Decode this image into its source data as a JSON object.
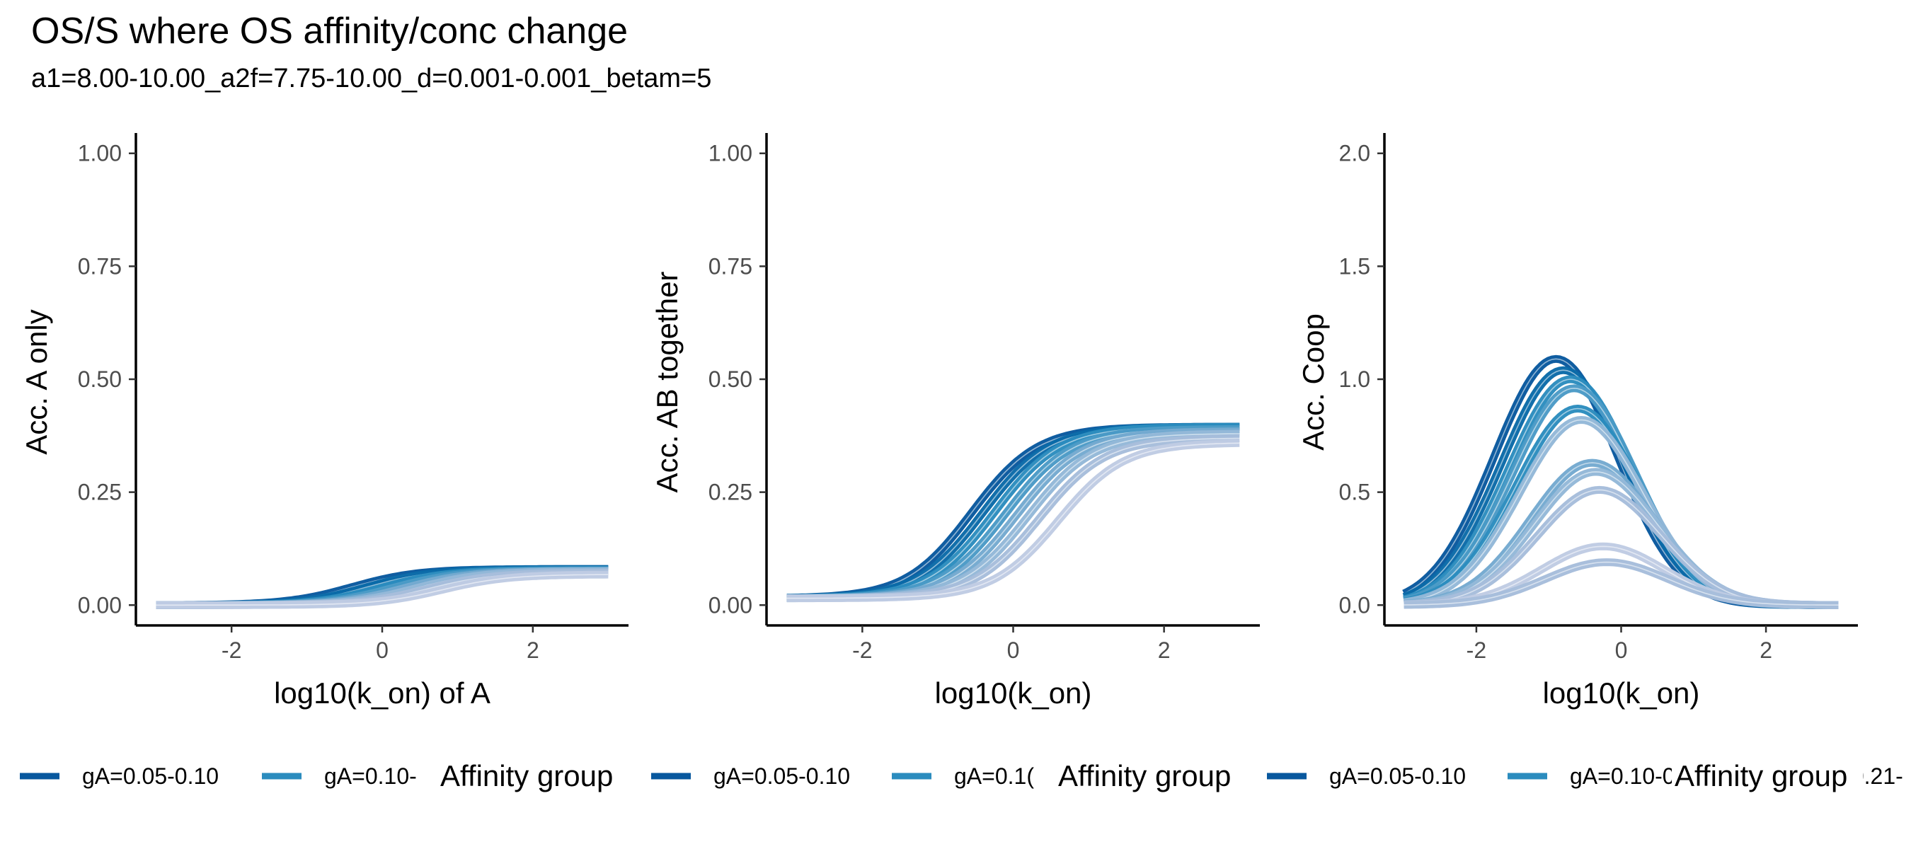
{
  "title": "OS/S where OS affinity/conc change",
  "subtitle": "a1=8.00-10.00_a2f=7.75-10.00_d=0.001-0.001_betam=5",
  "legend_title": "Affinity group",
  "colors": {
    "axis": "#000000",
    "tick_label": "#4d4d4d",
    "palette": [
      "#08589e",
      "#0a6aa8",
      "#2b8cbe",
      "#4a9ac6",
      "#74a9cf",
      "#93b8d8",
      "#a6bddb",
      "#bfcbe3"
    ]
  },
  "chart_data": [
    {
      "type": "line",
      "xlabel": "log10(k_on) of A",
      "ylabel": "Acc. A only",
      "xlim": [
        -3,
        3
      ],
      "ylim": [
        0,
        1
      ],
      "xticks": [
        -2,
        0,
        2
      ],
      "yticks": [
        0,
        0.25,
        0.5,
        0.75,
        1
      ],
      "ytick_labels": [
        "0.00",
        "0.25",
        "0.50",
        "0.75",
        "1.00"
      ],
      "grid": false,
      "legend_placement": "bottom",
      "legend_entries": [
        "gA=0.05-0.10",
        "gA=0.10-"
      ],
      "curves": [
        {
          "group": 0,
          "amp": 0.08,
          "mid": -0.4,
          "base": 0.0,
          "k": 2.3
        },
        {
          "group": 0,
          "amp": 0.08,
          "mid": -0.2,
          "base": 0.0,
          "k": 2.3
        },
        {
          "group": 1,
          "amp": 0.078,
          "mid": 0.0,
          "base": 0.0,
          "k": 2.3
        },
        {
          "group": 1,
          "amp": 0.077,
          "mid": 0.15,
          "base": 0.0,
          "k": 2.3
        },
        {
          "group": 2,
          "amp": 0.076,
          "mid": 0.3,
          "base": 0.0,
          "k": 2.3
        },
        {
          "group": 2,
          "amp": 0.075,
          "mid": 0.45,
          "base": 0.0,
          "k": 2.3
        },
        {
          "group": 3,
          "amp": 0.072,
          "mid": 0.6,
          "base": 0.0,
          "k": 2.3
        },
        {
          "group": 3,
          "amp": 0.068,
          "mid": 0.8,
          "base": 0.0,
          "k": 2.3
        }
      ]
    },
    {
      "type": "line",
      "xlabel": "log10(k_on)",
      "ylabel": "Acc. AB together",
      "xlim": [
        -3,
        3
      ],
      "ylim": [
        0,
        1
      ],
      "xticks": [
        -2,
        0,
        2
      ],
      "yticks": [
        0,
        0.25,
        0.5,
        0.75,
        1
      ],
      "ytick_labels": [
        "0.00",
        "0.25",
        "0.50",
        "0.75",
        "1.00"
      ],
      "grid": false,
      "legend_placement": "bottom",
      "legend_entries": [
        "gA=0.05-0.10",
        "gA=0.1("
      ],
      "curves": [
        {
          "group": 0,
          "amp": 0.38,
          "mid": -0.55,
          "base": 0.015,
          "k": 2.3
        },
        {
          "group": 0,
          "amp": 0.38,
          "mid": -0.4,
          "base": 0.015,
          "k": 2.3
        },
        {
          "group": 1,
          "amp": 0.38,
          "mid": -0.25,
          "base": 0.015,
          "k": 2.3
        },
        {
          "group": 1,
          "amp": 0.375,
          "mid": -0.1,
          "base": 0.015,
          "k": 2.3
        },
        {
          "group": 2,
          "amp": 0.37,
          "mid": 0.05,
          "base": 0.015,
          "k": 2.3
        },
        {
          "group": 2,
          "amp": 0.365,
          "mid": 0.2,
          "base": 0.015,
          "k": 2.3
        },
        {
          "group": 3,
          "amp": 0.355,
          "mid": 0.35,
          "base": 0.015,
          "k": 2.3
        },
        {
          "group": 3,
          "amp": 0.345,
          "mid": 0.6,
          "base": 0.015,
          "k": 2.3
        }
      ]
    },
    {
      "type": "line",
      "xlabel": "log10(k_on)",
      "ylabel": "Acc. Coop",
      "xlim": [
        -3,
        3
      ],
      "ylim": [
        0,
        2
      ],
      "xticks": [
        -2,
        0,
        2
      ],
      "yticks": [
        0,
        0.5,
        1,
        1.5,
        2
      ],
      "ytick_labels": [
        "0.0",
        "0.5",
        "1.0",
        "1.5",
        "2.0"
      ],
      "grid": false,
      "legend_placement": "bottom",
      "legend_entries": [
        "gA=0.05-0.10",
        "gA=0.10-0.21",
        "gA=0.21-"
      ],
      "curves": [
        {
          "group": 0,
          "peak": 1.09,
          "mu": -0.9,
          "sigma": 0.85
        },
        {
          "group": 0,
          "peak": 1.04,
          "mu": -0.8,
          "sigma": 0.85
        },
        {
          "group": 1,
          "peak": 1.0,
          "mu": -0.7,
          "sigma": 0.85
        },
        {
          "group": 1,
          "peak": 0.96,
          "mu": -0.65,
          "sigma": 0.85
        },
        {
          "group": 1,
          "peak": 0.87,
          "mu": -0.6,
          "sigma": 0.85
        },
        {
          "group": 2,
          "peak": 0.82,
          "mu": -0.55,
          "sigma": 0.85
        },
        {
          "group": 2,
          "peak": 0.63,
          "mu": -0.4,
          "sigma": 0.85
        },
        {
          "group": 2,
          "peak": 0.59,
          "mu": -0.35,
          "sigma": 0.85
        },
        {
          "group": 3,
          "peak": 0.51,
          "mu": -0.3,
          "sigma": 0.85
        },
        {
          "group": 3,
          "peak": 0.26,
          "mu": -0.25,
          "sigma": 0.85
        },
        {
          "group": 3,
          "peak": 0.19,
          "mu": -0.2,
          "sigma": 0.85
        }
      ]
    }
  ]
}
